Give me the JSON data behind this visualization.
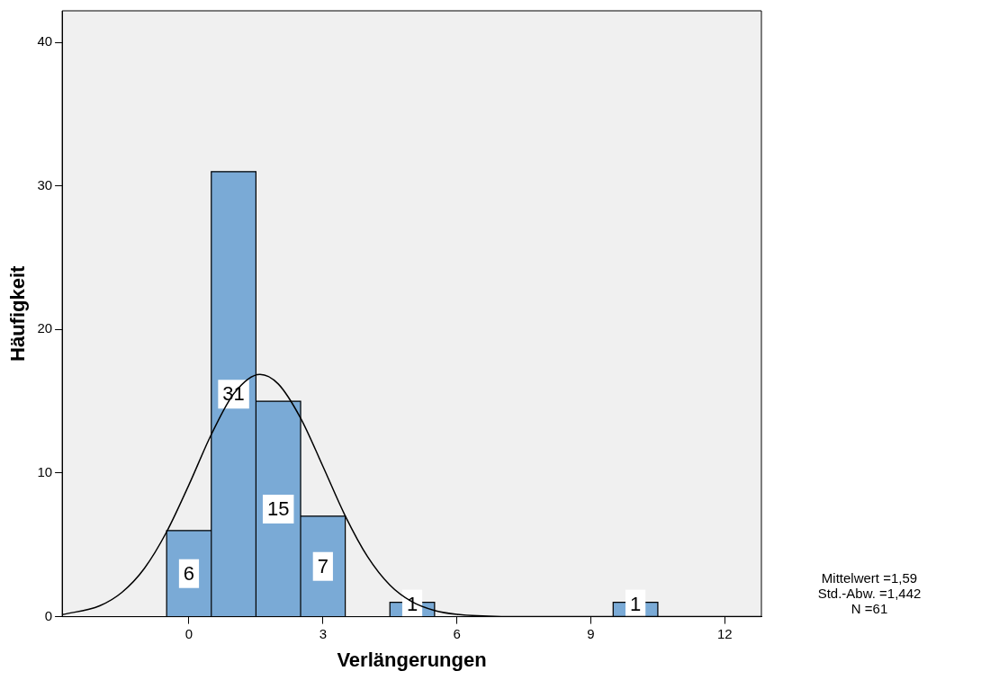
{
  "chart_data": {
    "type": "histogram",
    "xlabel": "Verlängerungen",
    "ylabel": "Häufigkeit",
    "bins": [
      -0.5,
      0.5,
      1.5,
      2.5,
      3.5,
      4.5,
      5.5,
      6.5,
      7.5,
      8.5,
      9.5,
      10.5
    ],
    "values": [
      6,
      31,
      15,
      7,
      0,
      1,
      0,
      0,
      0,
      0,
      1
    ],
    "value_labels": [
      "6",
      "31",
      "15",
      "7",
      null,
      "1",
      null,
      null,
      null,
      null,
      "1"
    ],
    "color": "#7aaad6",
    "series": [
      {
        "type": "line",
        "color": "#000000",
        "x": [
          -2.84,
          -2,
          -1.5,
          -1,
          -0.5,
          0,
          0.5,
          1,
          1.59,
          2,
          2.5,
          3,
          3.5,
          4,
          4.5,
          5,
          5.5,
          6,
          7,
          8,
          12.82
        ],
        "values": [
          0.14,
          0.76,
          1.7,
          3.36,
          5.91,
          9.19,
          12.69,
          15.52,
          16.88,
          16.21,
          13.83,
          10.47,
          7.02,
          4.18,
          2.2,
          1.03,
          0.43,
          0.16,
          0.01,
          0,
          0
        ]
      }
    ],
    "xlim": [
      -2.84,
      12.82
    ],
    "xticks": [
      0,
      3,
      6,
      9,
      12
    ],
    "ylim": [
      0,
      42.2
    ],
    "yticks": [
      0,
      10,
      20,
      30,
      40
    ],
    "grid": false,
    "legend": false,
    "marker": "none",
    "annotations": [
      "Mittelwert =1,59",
      "Std.-Abw. =1,442",
      "N =61"
    ]
  }
}
